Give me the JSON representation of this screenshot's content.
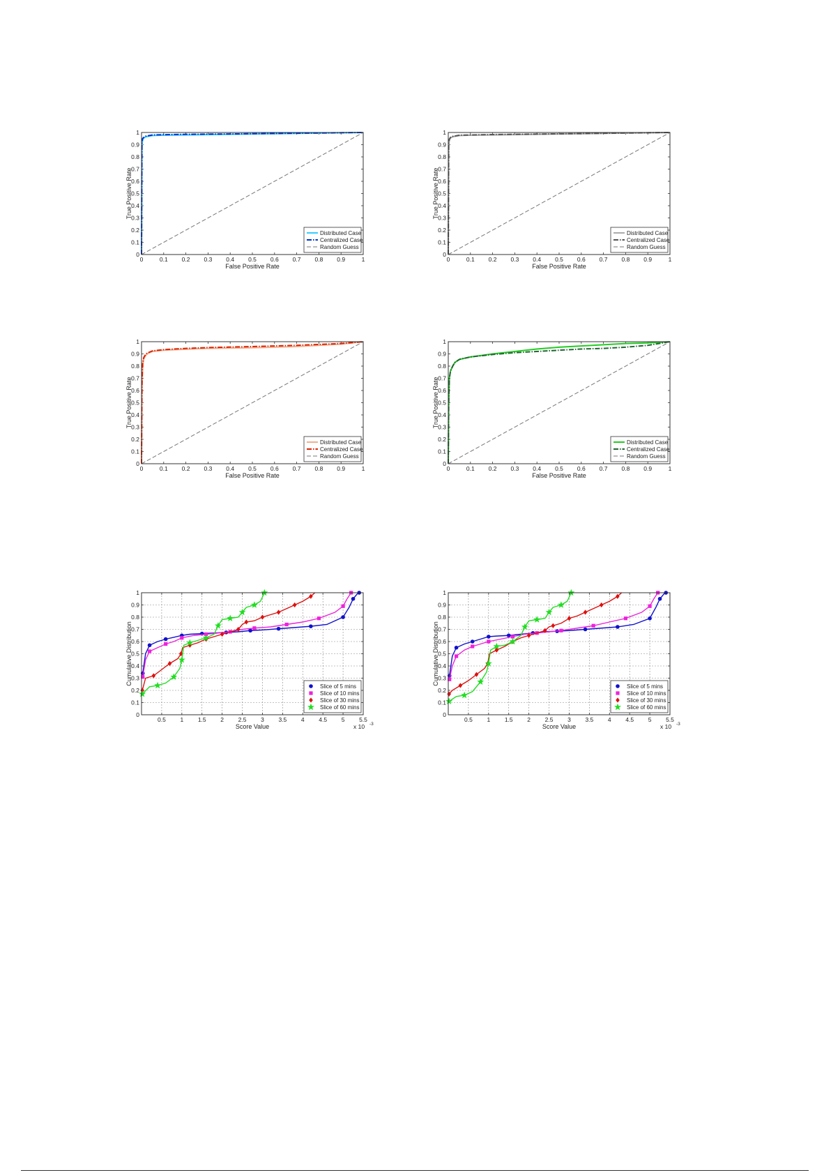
{
  "chart_data": [
    {
      "type": "line",
      "xlabel": "False Positive Rate",
      "ylabel": "True Positive Rate",
      "xlim": [
        0,
        1
      ],
      "ylim": [
        0,
        1
      ],
      "xticks": [
        "0",
        "0.1",
        "0.2",
        "0.3",
        "0.4",
        "0.5",
        "0.6",
        "0.7",
        "0.8",
        "0.9",
        "1"
      ],
      "yticks": [
        "0",
        "0.1",
        "0.2",
        "0.3",
        "0.4",
        "0.5",
        "0.6",
        "0.7",
        "0.8",
        "0.9",
        "1"
      ],
      "grid": false,
      "legend": "bottom-right",
      "series": [
        {
          "name": "Distributed Case",
          "color": "#33ccff",
          "style": "solid",
          "x": [
            0,
            0.002,
            0.005,
            0.01,
            0.02,
            0.05,
            0.1,
            0.2,
            0.4,
            0.6,
            0.8,
            1.0
          ],
          "y": [
            0,
            0.9,
            0.94,
            0.955,
            0.965,
            0.975,
            0.978,
            0.98,
            0.985,
            0.99,
            0.995,
            1.0
          ]
        },
        {
          "name": "Centralized Case",
          "color": "#0033cc",
          "style": "dashdot",
          "x": [
            0,
            0.002,
            0.005,
            0.01,
            0.02,
            0.05,
            0.1,
            0.2,
            0.4,
            0.6,
            0.8,
            1.0
          ],
          "y": [
            0,
            0.92,
            0.95,
            0.96,
            0.97,
            0.98,
            0.982,
            0.985,
            0.988,
            0.992,
            0.996,
            1.0
          ]
        },
        {
          "name": "Random Guess",
          "color": "#777777",
          "style": "dashed",
          "x": [
            0,
            1
          ],
          "y": [
            0,
            1
          ]
        }
      ]
    },
    {
      "type": "line",
      "xlabel": "False Positive Rate",
      "ylabel": "True Positive Rate",
      "xlim": [
        0,
        1
      ],
      "ylim": [
        0,
        1
      ],
      "xticks": [
        "0",
        "0.1",
        "0.2",
        "0.3",
        "0.4",
        "0.5",
        "0.6",
        "0.7",
        "0.8",
        "0.9",
        "1"
      ],
      "yticks": [
        "0",
        "0.1",
        "0.2",
        "0.3",
        "0.4",
        "0.5",
        "0.6",
        "0.7",
        "0.8",
        "0.9",
        "1"
      ],
      "grid": false,
      "legend": "bottom-right",
      "series": [
        {
          "name": "Distributed Case",
          "color": "#aaaaaa",
          "style": "solid",
          "x": [
            0,
            0.002,
            0.005,
            0.01,
            0.02,
            0.05,
            0.1,
            0.2,
            0.4,
            0.6,
            0.8,
            1.0
          ],
          "y": [
            0,
            0.9,
            0.94,
            0.955,
            0.965,
            0.975,
            0.978,
            0.98,
            0.985,
            0.99,
            0.995,
            1.0
          ]
        },
        {
          "name": "Centralized Case",
          "color": "#555555",
          "style": "dashdot",
          "x": [
            0,
            0.002,
            0.005,
            0.01,
            0.02,
            0.05,
            0.1,
            0.2,
            0.4,
            0.6,
            0.8,
            1.0
          ],
          "y": [
            0,
            0.91,
            0.945,
            0.96,
            0.968,
            0.978,
            0.98,
            0.983,
            0.987,
            0.991,
            0.996,
            1.0
          ]
        },
        {
          "name": "Random Guess",
          "color": "#777777",
          "style": "dashed",
          "x": [
            0,
            1
          ],
          "y": [
            0,
            1
          ]
        }
      ]
    },
    {
      "type": "line",
      "xlabel": "False Positive Rate",
      "ylabel": "True Positive Rate",
      "xlim": [
        0,
        1
      ],
      "ylim": [
        0,
        1
      ],
      "xticks": [
        "0",
        "0.1",
        "0.2",
        "0.3",
        "0.4",
        "0.5",
        "0.6",
        "0.7",
        "0.8",
        "0.9",
        "1"
      ],
      "yticks": [
        "0",
        "0.1",
        "0.2",
        "0.3",
        "0.4",
        "0.5",
        "0.6",
        "0.7",
        "0.8",
        "0.9",
        "1"
      ],
      "grid": false,
      "legend": "bottom-right",
      "series": [
        {
          "name": "Distributed Case",
          "color": "#f0b090",
          "style": "solid",
          "x": [
            0,
            0.002,
            0.005,
            0.01,
            0.02,
            0.03,
            0.05,
            0.1,
            0.2,
            0.3,
            0.5,
            0.7,
            0.9,
            1.0
          ],
          "y": [
            0,
            0.6,
            0.8,
            0.86,
            0.89,
            0.905,
            0.92,
            0.93,
            0.938,
            0.945,
            0.95,
            0.96,
            0.98,
            1.0
          ]
        },
        {
          "name": "Centralized Case",
          "color": "#dd2200",
          "style": "dashdot",
          "x": [
            0,
            0.002,
            0.005,
            0.01,
            0.02,
            0.03,
            0.05,
            0.1,
            0.2,
            0.3,
            0.5,
            0.7,
            0.9,
            1.0
          ],
          "y": [
            0,
            0.65,
            0.82,
            0.87,
            0.9,
            0.91,
            0.925,
            0.935,
            0.945,
            0.952,
            0.96,
            0.97,
            0.985,
            1.0
          ]
        },
        {
          "name": "Random Guess",
          "color": "#777777",
          "style": "dashed",
          "x": [
            0,
            1
          ],
          "y": [
            0,
            1
          ]
        }
      ]
    },
    {
      "type": "line",
      "xlabel": "False Positive Rate",
      "ylabel": "True Positive Rate",
      "xlim": [
        0,
        1
      ],
      "ylim": [
        0,
        1
      ],
      "xticks": [
        "0",
        "0.1",
        "0.2",
        "0.3",
        "0.4",
        "0.5",
        "0.6",
        "0.7",
        "0.8",
        "0.9",
        "1"
      ],
      "yticks": [
        "0",
        "0.1",
        "0.2",
        "0.3",
        "0.4",
        "0.5",
        "0.6",
        "0.7",
        "0.8",
        "0.9",
        "1"
      ],
      "grid": false,
      "legend": "bottom-right",
      "series": [
        {
          "name": "Distributed Case",
          "color": "#22cc22",
          "style": "solid",
          "x": [
            0,
            0.002,
            0.005,
            0.01,
            0.02,
            0.03,
            0.05,
            0.1,
            0.2,
            0.3,
            0.4,
            0.5,
            0.6,
            0.7,
            0.8,
            0.9,
            1.0
          ],
          "y": [
            0,
            0.5,
            0.7,
            0.76,
            0.8,
            0.83,
            0.855,
            0.875,
            0.9,
            0.92,
            0.94,
            0.955,
            0.965,
            0.975,
            0.985,
            0.99,
            1.0
          ]
        },
        {
          "name": "Centralized Case",
          "color": "#226633",
          "style": "dashdot",
          "x": [
            0,
            0.002,
            0.005,
            0.01,
            0.02,
            0.03,
            0.05,
            0.1,
            0.2,
            0.3,
            0.4,
            0.5,
            0.6,
            0.7,
            0.8,
            0.9,
            1.0
          ],
          "y": [
            0,
            0.5,
            0.7,
            0.76,
            0.8,
            0.83,
            0.855,
            0.875,
            0.895,
            0.91,
            0.92,
            0.93,
            0.94,
            0.945,
            0.955,
            0.97,
            1.0
          ]
        },
        {
          "name": "Random Guess",
          "color": "#777777",
          "style": "dashed",
          "x": [
            0,
            1
          ],
          "y": [
            0,
            1
          ]
        }
      ]
    },
    {
      "type": "line",
      "xlabel": "Score Value",
      "ylabel": "Cumulative Distribution",
      "xlim": [
        0,
        5.5
      ],
      "ylim": [
        0,
        1
      ],
      "x_multiplier": "x 10",
      "x_multiplier_exp": "-3",
      "xticks": [
        "0.5",
        "1",
        "1.5",
        "2",
        "2.5",
        "3",
        "3.5",
        "4",
        "4.5",
        "5",
        "5.5"
      ],
      "yticks": [
        "0",
        "0.1",
        "0.2",
        "0.3",
        "0.4",
        "0.5",
        "0.6",
        "0.7",
        "0.8",
        "0.9",
        "1"
      ],
      "grid": true,
      "legend": "bottom-right",
      "series": [
        {
          "name": "Slice of 5 mins",
          "color": "#1111cc",
          "marker": "circle",
          "x": [
            0.03,
            0.1,
            0.2,
            0.4,
            0.6,
            0.8,
            1.0,
            1.2,
            1.5,
            1.8,
            2.1,
            2.4,
            2.7,
            3.0,
            3.4,
            3.8,
            4.2,
            4.6,
            5.0,
            5.15,
            5.25,
            5.35,
            5.4
          ],
          "y": [
            0.34,
            0.5,
            0.57,
            0.6,
            0.62,
            0.635,
            0.65,
            0.66,
            0.665,
            0.67,
            0.675,
            0.68,
            0.69,
            0.695,
            0.705,
            0.715,
            0.725,
            0.74,
            0.8,
            0.88,
            0.95,
            0.99,
            1.0
          ]
        },
        {
          "name": "Slice of 10 mins",
          "color": "#ee22dd",
          "marker": "square",
          "x": [
            0.03,
            0.1,
            0.2,
            0.4,
            0.6,
            0.8,
            1.0,
            1.3,
            1.6,
            1.9,
            2.2,
            2.5,
            2.8,
            3.2,
            3.6,
            4.0,
            4.4,
            4.8,
            5.0,
            5.1,
            5.2
          ],
          "y": [
            0.31,
            0.45,
            0.52,
            0.55,
            0.58,
            0.6,
            0.63,
            0.65,
            0.66,
            0.67,
            0.68,
            0.7,
            0.71,
            0.72,
            0.74,
            0.76,
            0.79,
            0.84,
            0.89,
            0.95,
            1.0
          ]
        },
        {
          "name": "Slice of 30 mins",
          "color": "#dd1111",
          "marker": "diamond",
          "x": [
            0.02,
            0.1,
            0.3,
            0.5,
            0.7,
            0.9,
            0.98,
            1.02,
            1.2,
            1.4,
            1.6,
            1.8,
            2.0,
            2.2,
            2.4,
            2.5,
            2.6,
            2.8,
            3.0,
            3.2,
            3.4,
            3.6,
            3.8,
            4.0,
            4.2,
            4.3
          ],
          "y": [
            0.2,
            0.3,
            0.32,
            0.37,
            0.42,
            0.46,
            0.5,
            0.55,
            0.57,
            0.59,
            0.62,
            0.64,
            0.66,
            0.68,
            0.7,
            0.74,
            0.76,
            0.77,
            0.8,
            0.82,
            0.84,
            0.87,
            0.9,
            0.93,
            0.97,
            1.0
          ]
        },
        {
          "name": "Slice of 60 mins",
          "color": "#22dd22",
          "marker": "star",
          "x": [
            0.02,
            0.2,
            0.4,
            0.6,
            0.8,
            0.95,
            1.0,
            1.05,
            1.2,
            1.4,
            1.6,
            1.8,
            1.9,
            2.0,
            2.2,
            2.4,
            2.5,
            2.6,
            2.8,
            2.95,
            3.05
          ],
          "y": [
            0.17,
            0.23,
            0.24,
            0.26,
            0.31,
            0.38,
            0.45,
            0.57,
            0.59,
            0.61,
            0.63,
            0.66,
            0.73,
            0.78,
            0.79,
            0.8,
            0.84,
            0.88,
            0.9,
            0.93,
            1.0
          ]
        }
      ]
    },
    {
      "type": "line",
      "xlabel": "Score Value",
      "ylabel": "Cumulative Distribution",
      "xlim": [
        0,
        5.5
      ],
      "ylim": [
        0,
        1
      ],
      "x_multiplier": "x 10",
      "x_multiplier_exp": "-3",
      "xticks": [
        "0.5",
        "1",
        "1.5",
        "2",
        "2.5",
        "3",
        "3.5",
        "4",
        "4.5",
        "5",
        "5.5"
      ],
      "yticks": [
        "0",
        "0.1",
        "0.2",
        "0.3",
        "0.4",
        "0.5",
        "0.6",
        "0.7",
        "0.8",
        "0.9",
        "1"
      ],
      "grid": true,
      "legend": "bottom-right",
      "series": [
        {
          "name": "Slice of 5 mins",
          "color": "#1111cc",
          "marker": "circle",
          "x": [
            0.03,
            0.1,
            0.2,
            0.4,
            0.6,
            0.8,
            1.0,
            1.2,
            1.5,
            1.8,
            2.1,
            2.4,
            2.7,
            3.0,
            3.4,
            3.8,
            4.2,
            4.6,
            5.0,
            5.15,
            5.25,
            5.35,
            5.4
          ],
          "y": [
            0.32,
            0.48,
            0.55,
            0.58,
            0.6,
            0.62,
            0.64,
            0.645,
            0.65,
            0.66,
            0.67,
            0.68,
            0.685,
            0.69,
            0.7,
            0.71,
            0.72,
            0.74,
            0.79,
            0.88,
            0.95,
            0.99,
            1.0
          ]
        },
        {
          "name": "Slice of 10 mins",
          "color": "#ee22dd",
          "marker": "square",
          "x": [
            0.03,
            0.1,
            0.2,
            0.4,
            0.6,
            0.8,
            1.0,
            1.3,
            1.6,
            1.9,
            2.2,
            2.5,
            2.8,
            3.2,
            3.6,
            4.0,
            4.4,
            4.8,
            5.0,
            5.1,
            5.2
          ],
          "y": [
            0.29,
            0.4,
            0.48,
            0.53,
            0.56,
            0.58,
            0.6,
            0.62,
            0.64,
            0.66,
            0.67,
            0.68,
            0.69,
            0.71,
            0.73,
            0.76,
            0.79,
            0.84,
            0.89,
            0.95,
            1.0
          ]
        },
        {
          "name": "Slice of 30 mins",
          "color": "#dd1111",
          "marker": "diamond",
          "x": [
            0.02,
            0.1,
            0.3,
            0.5,
            0.7,
            0.9,
            0.98,
            1.02,
            1.2,
            1.4,
            1.6,
            1.8,
            2.0,
            2.2,
            2.4,
            2.5,
            2.6,
            2.8,
            3.0,
            3.2,
            3.4,
            3.6,
            3.8,
            4.0,
            4.2,
            4.3
          ],
          "y": [
            0.17,
            0.2,
            0.24,
            0.28,
            0.33,
            0.38,
            0.42,
            0.5,
            0.53,
            0.56,
            0.6,
            0.63,
            0.65,
            0.67,
            0.69,
            0.72,
            0.73,
            0.75,
            0.79,
            0.81,
            0.84,
            0.87,
            0.9,
            0.93,
            0.97,
            1.0
          ]
        },
        {
          "name": "Slice of 60 mins",
          "color": "#22dd22",
          "marker": "star",
          "x": [
            0.02,
            0.2,
            0.4,
            0.6,
            0.8,
            0.95,
            1.0,
            1.05,
            1.2,
            1.4,
            1.6,
            1.8,
            1.9,
            2.0,
            2.2,
            2.4,
            2.5,
            2.6,
            2.8,
            2.95,
            3.05
          ],
          "y": [
            0.11,
            0.15,
            0.16,
            0.19,
            0.27,
            0.35,
            0.42,
            0.53,
            0.56,
            0.57,
            0.6,
            0.65,
            0.72,
            0.77,
            0.78,
            0.79,
            0.84,
            0.88,
            0.9,
            0.93,
            1.0
          ]
        }
      ]
    }
  ]
}
